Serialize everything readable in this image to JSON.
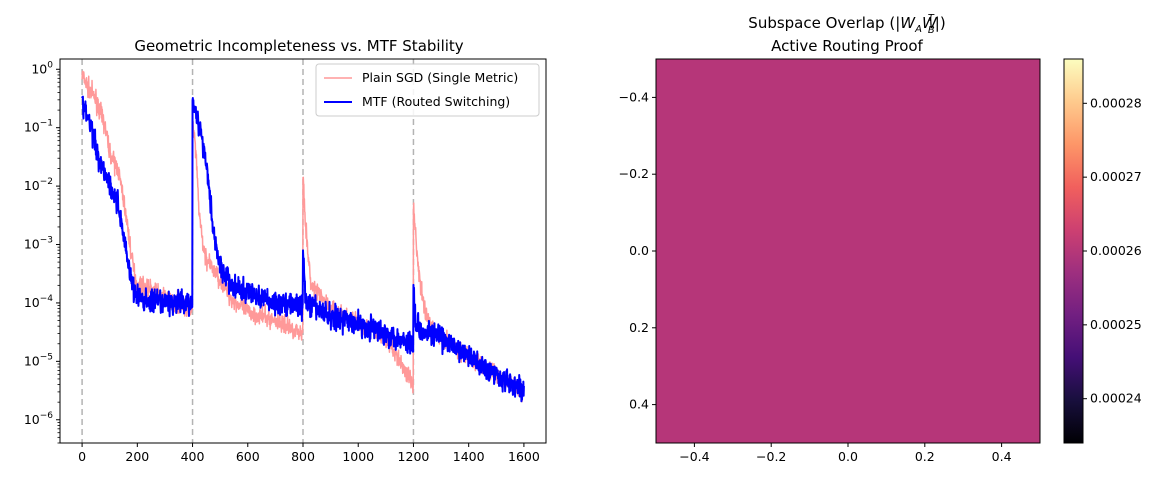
{
  "chart_data": [
    {
      "type": "line",
      "title": "Geometric Incompleteness vs. MTF Stability",
      "xlabel": "",
      "ylabel": "",
      "yscale": "log",
      "xlim": [
        -80,
        1680
      ],
      "ylim": [
        4e-07,
        1.5
      ],
      "x_ticks": [
        0,
        200,
        400,
        600,
        800,
        1000,
        1200,
        1400,
        1600
      ],
      "x_tick_labels": [
        "0",
        "200",
        "400",
        "600",
        "800",
        "1000",
        "1200",
        "1400",
        "1600"
      ],
      "y_ticks": [
        1e-06,
        1e-05,
        0.0001,
        0.001,
        0.01,
        0.1,
        1
      ],
      "y_tick_labels": [
        {
          "base": "10",
          "exp": "−6"
        },
        {
          "base": "10",
          "exp": "−5"
        },
        {
          "base": "10",
          "exp": "−4"
        },
        {
          "base": "10",
          "exp": "−3"
        },
        {
          "base": "10",
          "exp": "−2"
        },
        {
          "base": "10",
          "exp": "−1"
        },
        {
          "base": "10",
          "exp": "0"
        }
      ],
      "vlines": [
        0,
        400,
        800,
        1200
      ],
      "vline_color": "#b3b3b3",
      "legend_position": "upper-right",
      "series": [
        {
          "name": "Plain SGD (Single Metric)",
          "color": "#ff9999",
          "noise": 0.22,
          "points": [
            [
              0,
              0.8
            ],
            [
              20,
              0.5
            ],
            [
              50,
              0.3
            ],
            [
              80,
              0.12
            ],
            [
              100,
              0.04
            ],
            [
              115,
              0.025
            ],
            [
              130,
              0.02
            ],
            [
              150,
              0.006
            ],
            [
              165,
              0.002
            ],
            [
              180,
              0.0006
            ],
            [
              190,
              0.0003
            ],
            [
              200,
              0.0002
            ],
            [
              250,
              0.00017
            ],
            [
              300,
              0.00012
            ],
            [
              350,
              0.0001
            ],
            [
              399,
              7e-05
            ],
            [
              400,
              0.12
            ],
            [
              410,
              0.05
            ],
            [
              425,
              0.003
            ],
            [
              440,
              0.0008
            ],
            [
              455,
              0.0005
            ],
            [
              470,
              0.0004
            ],
            [
              500,
              0.00025
            ],
            [
              540,
              0.00012
            ],
            [
              600,
              7e-05
            ],
            [
              700,
              5e-05
            ],
            [
              799,
              3e-05
            ],
            [
              800,
              0.017
            ],
            [
              808,
              0.003
            ],
            [
              818,
              0.0006
            ],
            [
              830,
              0.0002
            ],
            [
              900,
              8e-05
            ],
            [
              1000,
              4.5e-05
            ],
            [
              1100,
              2.5e-05
            ],
            [
              1150,
              1e-05
            ],
            [
              1199,
              4e-06
            ],
            [
              1200,
              0.005
            ],
            [
              1208,
              0.0015
            ],
            [
              1220,
              0.0003
            ],
            [
              1235,
              0.0001
            ],
            [
              1260,
              4e-05
            ],
            [
              1300,
              2.5e-05
            ],
            [
              1400,
              1.2e-05
            ],
            [
              1500,
              6e-06
            ],
            [
              1600,
              3e-06
            ]
          ]
        },
        {
          "name": "MTF (Routed Switching)",
          "color": "#0000ff",
          "noise": 0.28,
          "points": [
            [
              0,
              0.27
            ],
            [
              20,
              0.15
            ],
            [
              40,
              0.08
            ],
            [
              60,
              0.03
            ],
            [
              90,
              0.015
            ],
            [
              110,
              0.008
            ],
            [
              130,
              0.005
            ],
            [
              150,
              0.0015
            ],
            [
              170,
              0.0004
            ],
            [
              190,
              0.00015
            ],
            [
              220,
              0.00011
            ],
            [
              300,
              0.0001
            ],
            [
              399,
              0.0001
            ],
            [
              400,
              0.35
            ],
            [
              420,
              0.12
            ],
            [
              440,
              0.05
            ],
            [
              460,
              0.01
            ],
            [
              475,
              0.0018
            ],
            [
              500,
              0.0004
            ],
            [
              550,
              0.00018
            ],
            [
              600,
              0.00015
            ],
            [
              700,
              0.0001
            ],
            [
              799,
              9e-05
            ],
            [
              800,
              0.0007
            ],
            [
              810,
              0.0001
            ],
            [
              900,
              6e-05
            ],
            [
              1000,
              4.5e-05
            ],
            [
              1100,
              3e-05
            ],
            [
              1199,
              2e-05
            ],
            [
              1200,
              0.00018
            ],
            [
              1210,
              4e-05
            ],
            [
              1300,
              2.5e-05
            ],
            [
              1400,
              1.2e-05
            ],
            [
              1500,
              6e-06
            ],
            [
              1600,
              3e-06
            ]
          ]
        }
      ]
    },
    {
      "type": "heatmap",
      "title": "Subspace Overlap (|W_A W_B^T|)",
      "title_parts": {
        "prefix": "Subspace Overlap (|",
        "w1": "W",
        "s1": "A",
        "w2": "W",
        "s2": "B",
        "sup": "T",
        "suffix": "|)"
      },
      "subtitle": "Active Routing Proof",
      "value": 0.00026,
      "cell_color": "#b63679",
      "colormap": "magma",
      "xlim": [
        -0.5,
        0.5
      ],
      "ylim": [
        0.5,
        -0.5
      ],
      "x_ticks": [
        -0.4,
        -0.2,
        0.0,
        0.2,
        0.4
      ],
      "x_tick_labels": [
        "−0.4",
        "−0.2",
        "0.0",
        "0.2",
        "0.4"
      ],
      "y_ticks": [
        -0.4,
        -0.2,
        0.0,
        0.2,
        0.4
      ],
      "y_tick_labels": [
        "−0.4",
        "−0.2",
        "0.0",
        "0.2",
        "0.4"
      ],
      "colorbar": {
        "vmin": 0.000234,
        "vmax": 0.000286,
        "ticks": [
          0.00024,
          0.00025,
          0.00026,
          0.00027,
          0.00028
        ],
        "tick_labels": [
          "0.00024",
          "0.00025",
          "0.00026",
          "0.00027",
          "0.00028"
        ],
        "stops": [
          "#000004",
          "#180f3d",
          "#440f76",
          "#721f81",
          "#9e2f7f",
          "#cd4071",
          "#f1605d",
          "#fd9668",
          "#feca8d",
          "#fcfdbf"
        ]
      }
    }
  ]
}
